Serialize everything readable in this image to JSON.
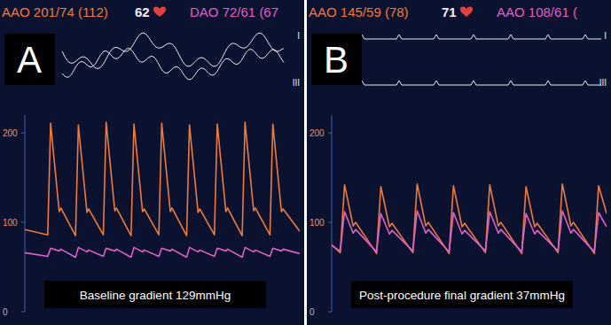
{
  "chart_data": [
    {
      "type": "line",
      "title": "A",
      "subtitle": "Baseline gradient 129mmHg",
      "annotations": [
        "62",
        "I",
        "III"
      ],
      "x": [
        0,
        0.8,
        0.9,
        1.2,
        1.26,
        1.77,
        1.87,
        2.17,
        2.23,
        2.74,
        2.84,
        3.14,
        3.2,
        3.71,
        3.81,
        4.11,
        4.17,
        4.68,
        4.78,
        5.08,
        5.14,
        5.65,
        5.75,
        6.05,
        6.11,
        6.62,
        6.72,
        7.02,
        7.08,
        7.59,
        7.69,
        7.99,
        8.05,
        8.56,
        8.66,
        8.96,
        9.02,
        9.6
      ],
      "xlim": [
        0,
        9.6
      ],
      "ylim": [
        0,
        220
      ],
      "yticks": [
        0,
        100,
        200
      ],
      "grid": false,
      "tick_labels": "y",
      "series": [
        {
          "name": "AAO 201/74 (112)",
          "color": "#f07a3c",
          "values": [
            92,
            86,
            211,
            112,
            116,
            85,
            209,
            111,
            115,
            86,
            212,
            113,
            116,
            85,
            210,
            112,
            115,
            86,
            211,
            112,
            116,
            85,
            209,
            111,
            115,
            86,
            210,
            112,
            116,
            85,
            212,
            113,
            116,
            86,
            210,
            112,
            115,
            90
          ]
        },
        {
          "name": "DAO 72/61 (67",
          "color": "#e060c8",
          "values": [
            66,
            62,
            71,
            68,
            70,
            61,
            72,
            67,
            69,
            62,
            71,
            68,
            70,
            61,
            72,
            67,
            69,
            62,
            71,
            68,
            70,
            61,
            72,
            67,
            69,
            62,
            71,
            68,
            70,
            61,
            72,
            67,
            69,
            62,
            71,
            68,
            70,
            65
          ]
        }
      ]
    },
    {
      "type": "line",
      "title": "B",
      "subtitle": "Post-procedure final gradient 37mmHg",
      "annotations": [
        "71",
        "I",
        "III"
      ],
      "x": [
        0,
        0.2,
        0.3,
        0.5,
        0.56,
        1.045,
        1.145,
        1.345,
        1.405,
        1.89,
        1.99,
        2.19,
        2.25,
        2.735,
        2.835,
        3.035,
        3.095,
        3.58,
        3.68,
        3.88,
        3.94,
        4.425,
        4.525,
        4.725,
        4.785,
        5.27,
        5.37,
        5.57,
        5.63,
        6.115,
        6.215,
        6.4
      ],
      "xlim": [
        0,
        6.4
      ],
      "ylim": [
        0,
        220
      ],
      "yticks": [
        0,
        100,
        200
      ],
      "grid": false,
      "tick_labels": "y",
      "series": [
        {
          "name": "AAO 145/59 (78)",
          "color": "#f07a3c",
          "values": [
            75,
            66,
            142,
            96,
            100,
            65,
            140,
            95,
            99,
            66,
            143,
            96,
            100,
            65,
            141,
            95,
            99,
            66,
            142,
            96,
            100,
            65,
            140,
            95,
            99,
            66,
            143,
            96,
            100,
            65,
            141,
            110
          ]
        },
        {
          "name": "AAO 108/61 (",
          "color": "#e060c8",
          "values": [
            74,
            68,
            112,
            88,
            92,
            67,
            110,
            87,
            91,
            68,
            113,
            88,
            92,
            67,
            111,
            87,
            91,
            68,
            112,
            88,
            92,
            67,
            110,
            87,
            91,
            68,
            113,
            88,
            92,
            67,
            111,
            95
          ]
        }
      ]
    }
  ]
}
